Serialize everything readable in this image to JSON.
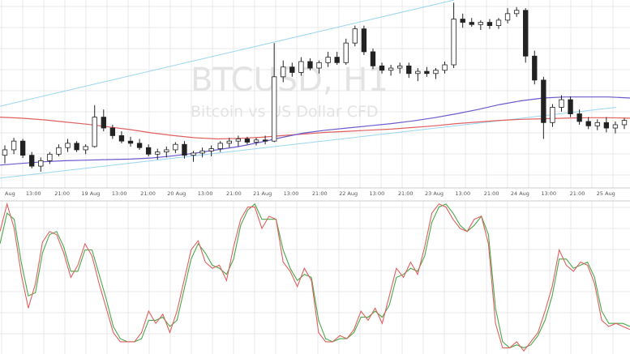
{
  "chart_data": [
    {
      "type": "candlestick",
      "title": "",
      "watermark": {
        "symbol": "BTCUSD, H1",
        "subtitle": "Bitcoin vs US Dollar CFD"
      },
      "x_tick_labels": [
        "Aug",
        "13:00",
        "21:00",
        "19 Aug",
        "13:00",
        "21:00",
        "20 Aug",
        "13:00",
        "21:00",
        "21 Aug",
        "13:00",
        "21:00",
        "22 Aug",
        "13:00",
        "21:00",
        "23 Aug",
        "13:00",
        "21:00",
        "24 Aug",
        "13:00",
        "21:00",
        "25 Aug"
      ],
      "grid": true,
      "colors": {
        "candle": "#222222",
        "ma_slow": "#6a5acd",
        "ma_fast": "#e06060",
        "channel": "#9ad6f0",
        "grid": "#e8e8e8"
      },
      "ma_slow": [
        0.42,
        0.45,
        0.48,
        0.5,
        0.51,
        0.52,
        0.53,
        0.55,
        0.59,
        0.64,
        0.7,
        0.76,
        0.84,
        0.93,
        1.01,
        1.06,
        1.1,
        1.14,
        1.18,
        1.23,
        1.29,
        1.36,
        1.44,
        1.53,
        1.6,
        1.65,
        1.67,
        1.67,
        1.67,
        1.65
      ],
      "ma_fast": [
        1.3,
        1.28,
        1.25,
        1.21,
        1.17,
        1.12,
        1.07,
        1.01,
        0.96,
        0.92,
        0.9,
        0.91,
        0.93,
        0.96,
        0.99,
        1.02,
        1.04,
        1.06,
        1.08,
        1.11,
        1.14,
        1.18,
        1.21,
        1.24,
        1.26,
        1.27,
        1.28,
        1.29,
        1.29,
        1.28
      ],
      "candles": [
        [
          0.6,
          0.78,
          0.45,
          0.7
        ],
        [
          0.7,
          0.92,
          0.62,
          0.86
        ],
        [
          0.86,
          0.9,
          0.55,
          0.6
        ],
        [
          0.6,
          0.66,
          0.36,
          0.4
        ],
        [
          0.4,
          0.56,
          0.3,
          0.5
        ],
        [
          0.5,
          0.66,
          0.44,
          0.62
        ],
        [
          0.62,
          0.8,
          0.58,
          0.74
        ],
        [
          0.74,
          0.9,
          0.66,
          0.82
        ],
        [
          0.82,
          0.86,
          0.66,
          0.7
        ],
        [
          0.7,
          0.8,
          0.62,
          0.76
        ],
        [
          0.76,
          1.52,
          0.74,
          1.3
        ],
        [
          1.3,
          1.44,
          1.04,
          1.1
        ],
        [
          1.1,
          1.16,
          0.9,
          0.96
        ],
        [
          0.96,
          1.04,
          0.82,
          0.86
        ],
        [
          0.86,
          0.94,
          0.76,
          0.82
        ],
        [
          0.82,
          0.9,
          0.7,
          0.74
        ],
        [
          0.74,
          0.8,
          0.58,
          0.62
        ],
        [
          0.62,
          0.72,
          0.52,
          0.66
        ],
        [
          0.66,
          0.76,
          0.56,
          0.7
        ],
        [
          0.7,
          0.84,
          0.64,
          0.8
        ],
        [
          0.8,
          0.86,
          0.54,
          0.6
        ],
        [
          0.6,
          0.68,
          0.48,
          0.64
        ],
        [
          0.64,
          0.74,
          0.56,
          0.68
        ],
        [
          0.68,
          0.78,
          0.58,
          0.72
        ],
        [
          0.72,
          0.86,
          0.66,
          0.82
        ],
        [
          0.82,
          0.92,
          0.74,
          0.86
        ],
        [
          0.86,
          0.96,
          0.76,
          0.9
        ],
        [
          0.9,
          0.94,
          0.8,
          0.84
        ],
        [
          0.84,
          0.92,
          0.78,
          0.88
        ],
        [
          0.88,
          0.96,
          0.8,
          0.86
        ],
        [
          0.86,
          2.66,
          0.84,
          2.04
        ],
        [
          2.04,
          2.34,
          1.94,
          2.22
        ],
        [
          2.22,
          2.3,
          2.04,
          2.12
        ],
        [
          2.12,
          2.4,
          2.06,
          2.32
        ],
        [
          2.32,
          2.38,
          2.16,
          2.2
        ],
        [
          2.2,
          2.34,
          2.1,
          2.3
        ],
        [
          2.3,
          2.5,
          2.22,
          2.4
        ],
        [
          2.4,
          2.5,
          2.26,
          2.3
        ],
        [
          2.3,
          2.74,
          2.26,
          2.66
        ],
        [
          2.66,
          2.98,
          2.6,
          2.92
        ],
        [
          2.92,
          2.98,
          2.44,
          2.5
        ],
        [
          2.5,
          2.56,
          2.18,
          2.24
        ],
        [
          2.24,
          2.3,
          2.1,
          2.16
        ],
        [
          2.16,
          2.26,
          2.06,
          2.2
        ],
        [
          2.2,
          2.3,
          2.1,
          2.24
        ],
        [
          2.24,
          2.3,
          2.02,
          2.1
        ],
        [
          2.1,
          2.2,
          1.96,
          2.14
        ],
        [
          2.14,
          2.22,
          2.04,
          2.1
        ],
        [
          2.1,
          2.2,
          2.0,
          2.16
        ],
        [
          2.16,
          2.32,
          2.1,
          2.26
        ],
        [
          2.26,
          3.4,
          2.2,
          3.1
        ],
        [
          3.1,
          3.2,
          2.94,
          3.04
        ],
        [
          3.04,
          3.12,
          2.96,
          3.0
        ],
        [
          3.0,
          3.08,
          2.9,
          3.04
        ],
        [
          3.04,
          3.1,
          2.92,
          2.98
        ],
        [
          2.98,
          3.12,
          2.92,
          3.08
        ],
        [
          3.08,
          3.3,
          3.02,
          3.2
        ],
        [
          3.2,
          3.32,
          3.14,
          3.26
        ],
        [
          3.26,
          3.3,
          2.3,
          2.42
        ],
        [
          2.42,
          2.52,
          1.9,
          1.98
        ],
        [
          1.98,
          2.04,
          0.9,
          1.2
        ],
        [
          1.2,
          1.54,
          1.12,
          1.48
        ],
        [
          1.48,
          1.7,
          1.4,
          1.62
        ],
        [
          1.62,
          1.68,
          1.3,
          1.36
        ],
        [
          1.36,
          1.44,
          1.16,
          1.22
        ],
        [
          1.22,
          1.3,
          1.08,
          1.14
        ],
        [
          1.14,
          1.26,
          1.06,
          1.2
        ],
        [
          1.2,
          1.3,
          1.02,
          1.1
        ],
        [
          1.1,
          1.22,
          1.0,
          1.16
        ],
        [
          1.16,
          1.28,
          1.08,
          1.24
        ]
      ]
    },
    {
      "type": "line",
      "title": "",
      "ylim": [
        0,
        100
      ],
      "grid": true,
      "series": [
        {
          "color": "#e06060",
          "values": [
            80,
            98,
            82,
            52,
            30,
            46,
            73,
            80,
            78,
            66,
            50,
            58,
            72,
            64,
            46,
            30,
            14,
            8,
            8,
            8,
            14,
            28,
            20,
            26,
            14,
            28,
            48,
            68,
            74,
            60,
            56,
            58,
            48,
            70,
            88,
            96,
            96,
            82,
            90,
            88,
            60,
            54,
            44,
            56,
            48,
            14,
            8,
            8,
            12,
            10,
            16,
            28,
            22,
            30,
            20,
            38,
            56,
            50,
            60,
            52,
            70,
            92,
            98,
            96,
            88,
            82,
            80,
            88,
            90,
            72,
            20,
            4,
            4,
            8,
            2,
            8,
            14,
            28,
            44,
            68,
            58,
            54,
            60,
            58,
            46,
            22,
            18,
            20,
            18,
            16
          ]
        },
        {
          "color": "#4aa84a",
          "values": [
            72,
            92,
            88,
            60,
            38,
            40,
            66,
            78,
            80,
            70,
            54,
            54,
            68,
            68,
            52,
            36,
            18,
            10,
            8,
            8,
            10,
            22,
            22,
            24,
            18,
            22,
            42,
            62,
            72,
            66,
            58,
            56,
            52,
            62,
            84,
            94,
            98,
            88,
            88,
            88,
            68,
            56,
            48,
            52,
            50,
            22,
            10,
            8,
            10,
            10,
            14,
            24,
            24,
            28,
            24,
            32,
            50,
            52,
            56,
            54,
            64,
            86,
            96,
            98,
            92,
            84,
            80,
            84,
            90,
            78,
            30,
            8,
            4,
            6,
            4,
            6,
            12,
            22,
            38,
            62,
            62,
            56,
            58,
            60,
            50,
            28,
            20,
            20,
            20,
            18
          ]
        }
      ]
    }
  ]
}
